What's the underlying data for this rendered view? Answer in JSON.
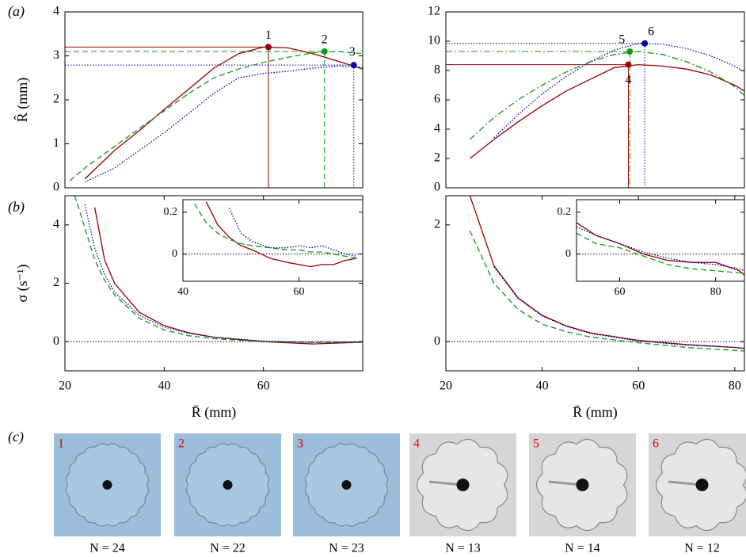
{
  "panel_labels": [
    "(a)",
    "(b)",
    "(c)"
  ],
  "chart_data": [
    {
      "type": "line",
      "ylabel": "R̂ (mm)",
      "xlim": [
        20,
        80
      ],
      "ylim": [
        0,
        4
      ],
      "yticks": [
        0,
        1,
        2,
        3,
        4
      ],
      "x": [
        21,
        24,
        30,
        35,
        40,
        45,
        50,
        55,
        60,
        65,
        70,
        75,
        80
      ],
      "series": [
        {
          "color": "#990000",
          "style": "solid",
          "values": [
            null,
            0.2,
            0.85,
            1.3,
            1.78,
            2.25,
            2.72,
            3.05,
            3.2,
            3.18,
            3.05,
            2.88,
            2.7
          ]
        },
        {
          "color": "#119911",
          "style": "dashed",
          "values": [
            0.16,
            0.45,
            0.94,
            1.35,
            1.75,
            2.15,
            2.5,
            2.7,
            2.85,
            2.97,
            3.07,
            3.1,
            3.05
          ]
        },
        {
          "color": "#0000aa",
          "style": "dotted",
          "values": [
            null,
            0.13,
            0.45,
            0.85,
            1.25,
            1.7,
            2.15,
            2.5,
            2.6,
            2.65,
            2.72,
            2.77,
            2.74
          ]
        }
      ],
      "markers": [
        {
          "label": "1",
          "x": 61,
          "y": 3.2,
          "color": "#990000"
        },
        {
          "label": "2",
          "x": 72.3,
          "y": 3.1,
          "color": "#119911"
        },
        {
          "label": "3",
          "x": 78.2,
          "y": 2.79,
          "color": "#0000aa"
        }
      ]
    },
    {
      "type": "line",
      "xlim": [
        20,
        82
      ],
      "ylim": [
        0,
        12
      ],
      "yticks": [
        0,
        2,
        4,
        6,
        8,
        10,
        12
      ],
      "x": [
        20,
        25,
        30,
        35,
        40,
        45,
        50,
        55,
        60,
        65,
        70,
        75,
        80,
        82
      ],
      "series": [
        {
          "color": "#990000",
          "style": "solid",
          "values": [
            null,
            2.0,
            3.3,
            4.5,
            5.6,
            6.6,
            7.4,
            8.2,
            8.4,
            8.3,
            8.1,
            7.7,
            7.0,
            6.6
          ]
        },
        {
          "color": "#119911",
          "style": "dashdot",
          "values": [
            null,
            3.3,
            4.8,
            6.0,
            7.0,
            7.9,
            8.6,
            9.1,
            9.3,
            9.1,
            8.6,
            7.9,
            6.9,
            6.3
          ]
        },
        {
          "color": "#0000aa",
          "style": "dotted",
          "values": [
            null,
            null,
            3.4,
            5.0,
            6.4,
            7.6,
            8.6,
            9.4,
            9.85,
            9.8,
            9.5,
            9.0,
            8.3,
            7.9
          ]
        }
      ],
      "markers": [
        {
          "label": "4",
          "x": 57.9,
          "y": 8.4,
          "color": "#990000"
        },
        {
          "label": "5",
          "x": 58.2,
          "y": 9.3,
          "color": "#119911"
        },
        {
          "label": "6",
          "x": 61.3,
          "y": 9.85,
          "color": "#0000aa"
        }
      ]
    },
    {
      "type": "line",
      "ylabel": "σ (s⁻¹)",
      "xlabel": "R̄ (mm)",
      "xlim": [
        20,
        80
      ],
      "ylim": [
        -1,
        5
      ],
      "xticks": [
        20,
        40,
        60
      ],
      "yticks": [
        0,
        2,
        4
      ],
      "reference_line": 0,
      "x": [
        22,
        24,
        26,
        28,
        30,
        35,
        40,
        45,
        50,
        60,
        70,
        80
      ],
      "series": [
        {
          "color": "#990000",
          "style": "solid",
          "values": [
            null,
            null,
            4.6,
            2.8,
            2.0,
            1.0,
            0.55,
            0.3,
            0.15,
            0.0,
            -0.08,
            -0.02
          ]
        },
        {
          "color": "#119911",
          "style": "dashed",
          "values": [
            5.0,
            3.9,
            2.8,
            2.1,
            1.6,
            0.8,
            0.4,
            0.2,
            0.1,
            0.0,
            -0.02,
            -0.02
          ]
        },
        {
          "color": "#0000aa",
          "style": "dotted",
          "values": [
            null,
            4.7,
            3.2,
            2.3,
            1.7,
            0.9,
            0.5,
            0.28,
            0.15,
            0.02,
            -0.03,
            -0.02
          ]
        }
      ]
    },
    {
      "type": "line",
      "xlabel": "R̄ (mm)",
      "xlim": [
        20,
        82
      ],
      "ylim": [
        -0.5,
        2.5
      ],
      "xticks": [
        20,
        40,
        60,
        80
      ],
      "yticks": [
        0,
        2
      ],
      "reference_line": 0,
      "x": [
        22,
        25,
        30,
        35,
        40,
        45,
        50,
        60,
        70,
        80,
        82
      ],
      "series": [
        {
          "color": "#990000",
          "style": "solid",
          "values": [
            null,
            2.5,
            1.3,
            0.75,
            0.45,
            0.27,
            0.15,
            0.02,
            -0.05,
            -0.1,
            -0.12
          ]
        },
        {
          "color": "#119911",
          "style": "dashed",
          "values": [
            null,
            1.9,
            1.0,
            0.55,
            0.3,
            0.17,
            0.08,
            -0.02,
            -0.1,
            -0.15,
            -0.16
          ]
        },
        {
          "color": "#0000aa",
          "style": "dotted",
          "values": [
            null,
            null,
            1.28,
            0.74,
            0.44,
            0.26,
            0.14,
            0.01,
            -0.06,
            -0.1,
            -0.11
          ]
        }
      ]
    },
    {
      "type": "line",
      "xlim": [
        40,
        71
      ],
      "ylim": [
        -0.13,
        0.26
      ],
      "xticks": [
        40,
        60
      ],
      "yticks": [
        0,
        0.2
      ],
      "reference_line": 0,
      "x": [
        42,
        44,
        46,
        48,
        50,
        52,
        55,
        58,
        60,
        62,
        64,
        66,
        68,
        70
      ],
      "series": [
        {
          "color": "#990000",
          "style": "solid",
          "values": [
            null,
            0.25,
            0.14,
            0.08,
            0.04,
            0.02,
            -0.02,
            -0.04,
            -0.05,
            -0.06,
            -0.05,
            -0.05,
            -0.03,
            -0.02
          ]
        },
        {
          "color": "#119911",
          "style": "dashed",
          "values": [
            0.24,
            0.15,
            0.1,
            0.07,
            0.05,
            0.04,
            0.03,
            0.02,
            0.02,
            0.01,
            0.01,
            0.0,
            -0.01,
            -0.02
          ]
        },
        {
          "color": "#0000aa",
          "style": "dotted",
          "values": [
            null,
            null,
            null,
            0.22,
            0.1,
            0.06,
            0.03,
            0.03,
            0.04,
            0.03,
            0.04,
            0.02,
            0.0,
            -0.01
          ]
        }
      ]
    },
    {
      "type": "line",
      "xlim": [
        51,
        86
      ],
      "ylim": [
        -0.13,
        0.26
      ],
      "xticks": [
        60,
        80
      ],
      "yticks": [
        0,
        0.2
      ],
      "reference_line": 0,
      "x": [
        51,
        55,
        60,
        65,
        70,
        75,
        80,
        85,
        86
      ],
      "series": [
        {
          "color": "#990000",
          "style": "solid",
          "values": [
            0.15,
            0.09,
            0.05,
            0.0,
            -0.03,
            -0.04,
            -0.04,
            -0.08,
            -0.1
          ]
        },
        {
          "color": "#119911",
          "style": "dashed",
          "values": [
            0.1,
            0.05,
            0.03,
            -0.01,
            -0.05,
            -0.07,
            -0.08,
            -0.09,
            -0.09
          ]
        },
        {
          "color": "#0000aa",
          "style": "dotted",
          "values": [
            0.13,
            0.09,
            0.05,
            0.01,
            -0.02,
            -0.04,
            -0.05,
            -0.07,
            -0.08
          ]
        }
      ]
    }
  ],
  "photos": [
    {
      "number": "1",
      "caption": "N = 24"
    },
    {
      "number": "2",
      "caption": "N = 22"
    },
    {
      "number": "3",
      "caption": "N = 23"
    },
    {
      "number": "4",
      "caption": "N = 13"
    },
    {
      "number": "5",
      "caption": "N = 14"
    },
    {
      "number": "6",
      "caption": "N = 12"
    }
  ]
}
